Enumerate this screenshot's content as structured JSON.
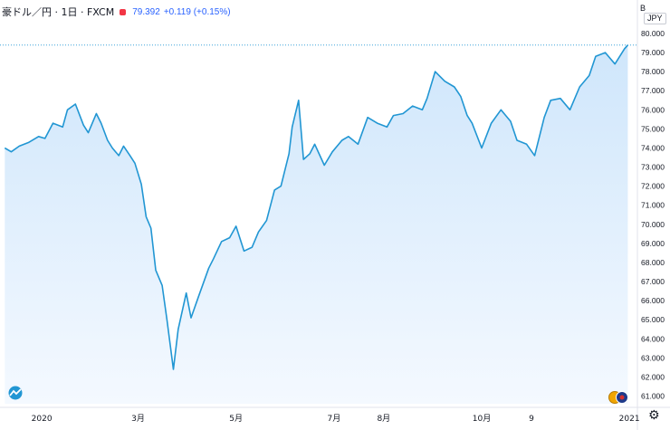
{
  "header": {
    "symbol": "豪ドル／円 · 1日 · FXCM",
    "price": "79.392",
    "change": "+0.119 (+0.15%)",
    "currency_prefix": "B",
    "currency": "JPY"
  },
  "colors": {
    "line": "#2196d3",
    "area_top": "#cfe6fb",
    "area_bottom": "#f4f9ff",
    "price_line": "#2196d3",
    "badge": "#f23645"
  },
  "icons": {
    "logo": "tradingview-logo-icon",
    "settings": "gear-icon",
    "flag": "currency-flag-icon"
  },
  "chart_data": {
    "type": "area",
    "ylim": [
      60.6,
      80.9
    ],
    "y_ticks": [
      "80.000",
      "79.000",
      "78.000",
      "77.000",
      "76.000",
      "75.000",
      "74.000",
      "73.000",
      "72.000",
      "71.000",
      "70.000",
      "69.000",
      "68.000",
      "67.000",
      "66.000",
      "65.000",
      "64.000",
      "63.000",
      "62.000",
      "61.000"
    ],
    "x_ticks": [
      {
        "label": "2020",
        "x": "2020-01-01"
      },
      {
        "label": "3月",
        "x": "2020-03-01"
      },
      {
        "label": "5月",
        "x": "2020-05-01"
      },
      {
        "label": "7月",
        "x": "2020-07-01"
      },
      {
        "label": "8月",
        "x": "2020-08-01"
      },
      {
        "label": "10月",
        "x": "2020-10-01"
      },
      {
        "label": "9",
        "x": "2020-11-01"
      },
      {
        "label": "2021",
        "x": "2021-01-01"
      }
    ],
    "last_value": 79.392,
    "series": [
      {
        "x": [
          "2019-12-09",
          "2019-12-13",
          "2019-12-18",
          "2019-12-24",
          "2019-12-30",
          "2020-01-03",
          "2020-01-08",
          "2020-01-14",
          "2020-01-17",
          "2020-01-22",
          "2020-01-27",
          "2020-01-30",
          "2020-02-04",
          "2020-02-07",
          "2020-02-11",
          "2020-02-14",
          "2020-02-18",
          "2020-02-21",
          "2020-02-25",
          "2020-02-28",
          "2020-03-03",
          "2020-03-06",
          "2020-03-09",
          "2020-03-12",
          "2020-03-16",
          "2020-03-19",
          "2020-03-23",
          "2020-03-26",
          "2020-03-31",
          "2020-04-03",
          "2020-04-08",
          "2020-04-14",
          "2020-04-17",
          "2020-04-22",
          "2020-04-27",
          "2020-05-01",
          "2020-05-06",
          "2020-05-11",
          "2020-05-15",
          "2020-05-20",
          "2020-05-25",
          "2020-05-29",
          "2020-06-03",
          "2020-06-05",
          "2020-06-09",
          "2020-06-12",
          "2020-06-16",
          "2020-06-19",
          "2020-06-25",
          "2020-06-30",
          "2020-07-06",
          "2020-07-10",
          "2020-07-16",
          "2020-07-22",
          "2020-07-28",
          "2020-08-03",
          "2020-08-07",
          "2020-08-13",
          "2020-08-19",
          "2020-08-25",
          "2020-08-28",
          "2020-09-02",
          "2020-09-08",
          "2020-09-14",
          "2020-09-18",
          "2020-09-22",
          "2020-09-25",
          "2020-10-01",
          "2020-10-07",
          "2020-10-13",
          "2020-10-19",
          "2020-10-23",
          "2020-10-29",
          "2020-11-03",
          "2020-11-09",
          "2020-11-13",
          "2020-11-19",
          "2020-11-25",
          "2020-12-01",
          "2020-12-07",
          "2020-12-11",
          "2020-12-17",
          "2020-12-23",
          "2020-12-29",
          "2020-12-31"
        ],
        "y": [
          74.0,
          73.8,
          74.1,
          74.3,
          74.6,
          74.5,
          75.3,
          75.1,
          76.0,
          76.3,
          75.2,
          74.8,
          75.8,
          75.3,
          74.4,
          74.0,
          73.6,
          74.1,
          73.6,
          73.2,
          72.1,
          70.4,
          69.8,
          67.6,
          66.8,
          65.0,
          62.4,
          64.5,
          66.4,
          65.1,
          66.3,
          67.7,
          68.2,
          69.1,
          69.3,
          69.9,
          68.6,
          68.8,
          69.6,
          70.2,
          71.8,
          72.0,
          73.7,
          75.1,
          76.5,
          73.4,
          73.7,
          74.2,
          73.1,
          73.8,
          74.4,
          74.6,
          74.2,
          75.6,
          75.3,
          75.1,
          75.7,
          75.8,
          76.2,
          76.0,
          76.6,
          78.0,
          77.5,
          77.2,
          76.7,
          75.7,
          75.3,
          74.0,
          75.3,
          76.0,
          75.4,
          74.4,
          74.2,
          73.6,
          75.6,
          76.5,
          76.6,
          76.0,
          77.2,
          77.8,
          78.8,
          79.0,
          78.4,
          79.2,
          79.392
        ]
      }
    ]
  }
}
